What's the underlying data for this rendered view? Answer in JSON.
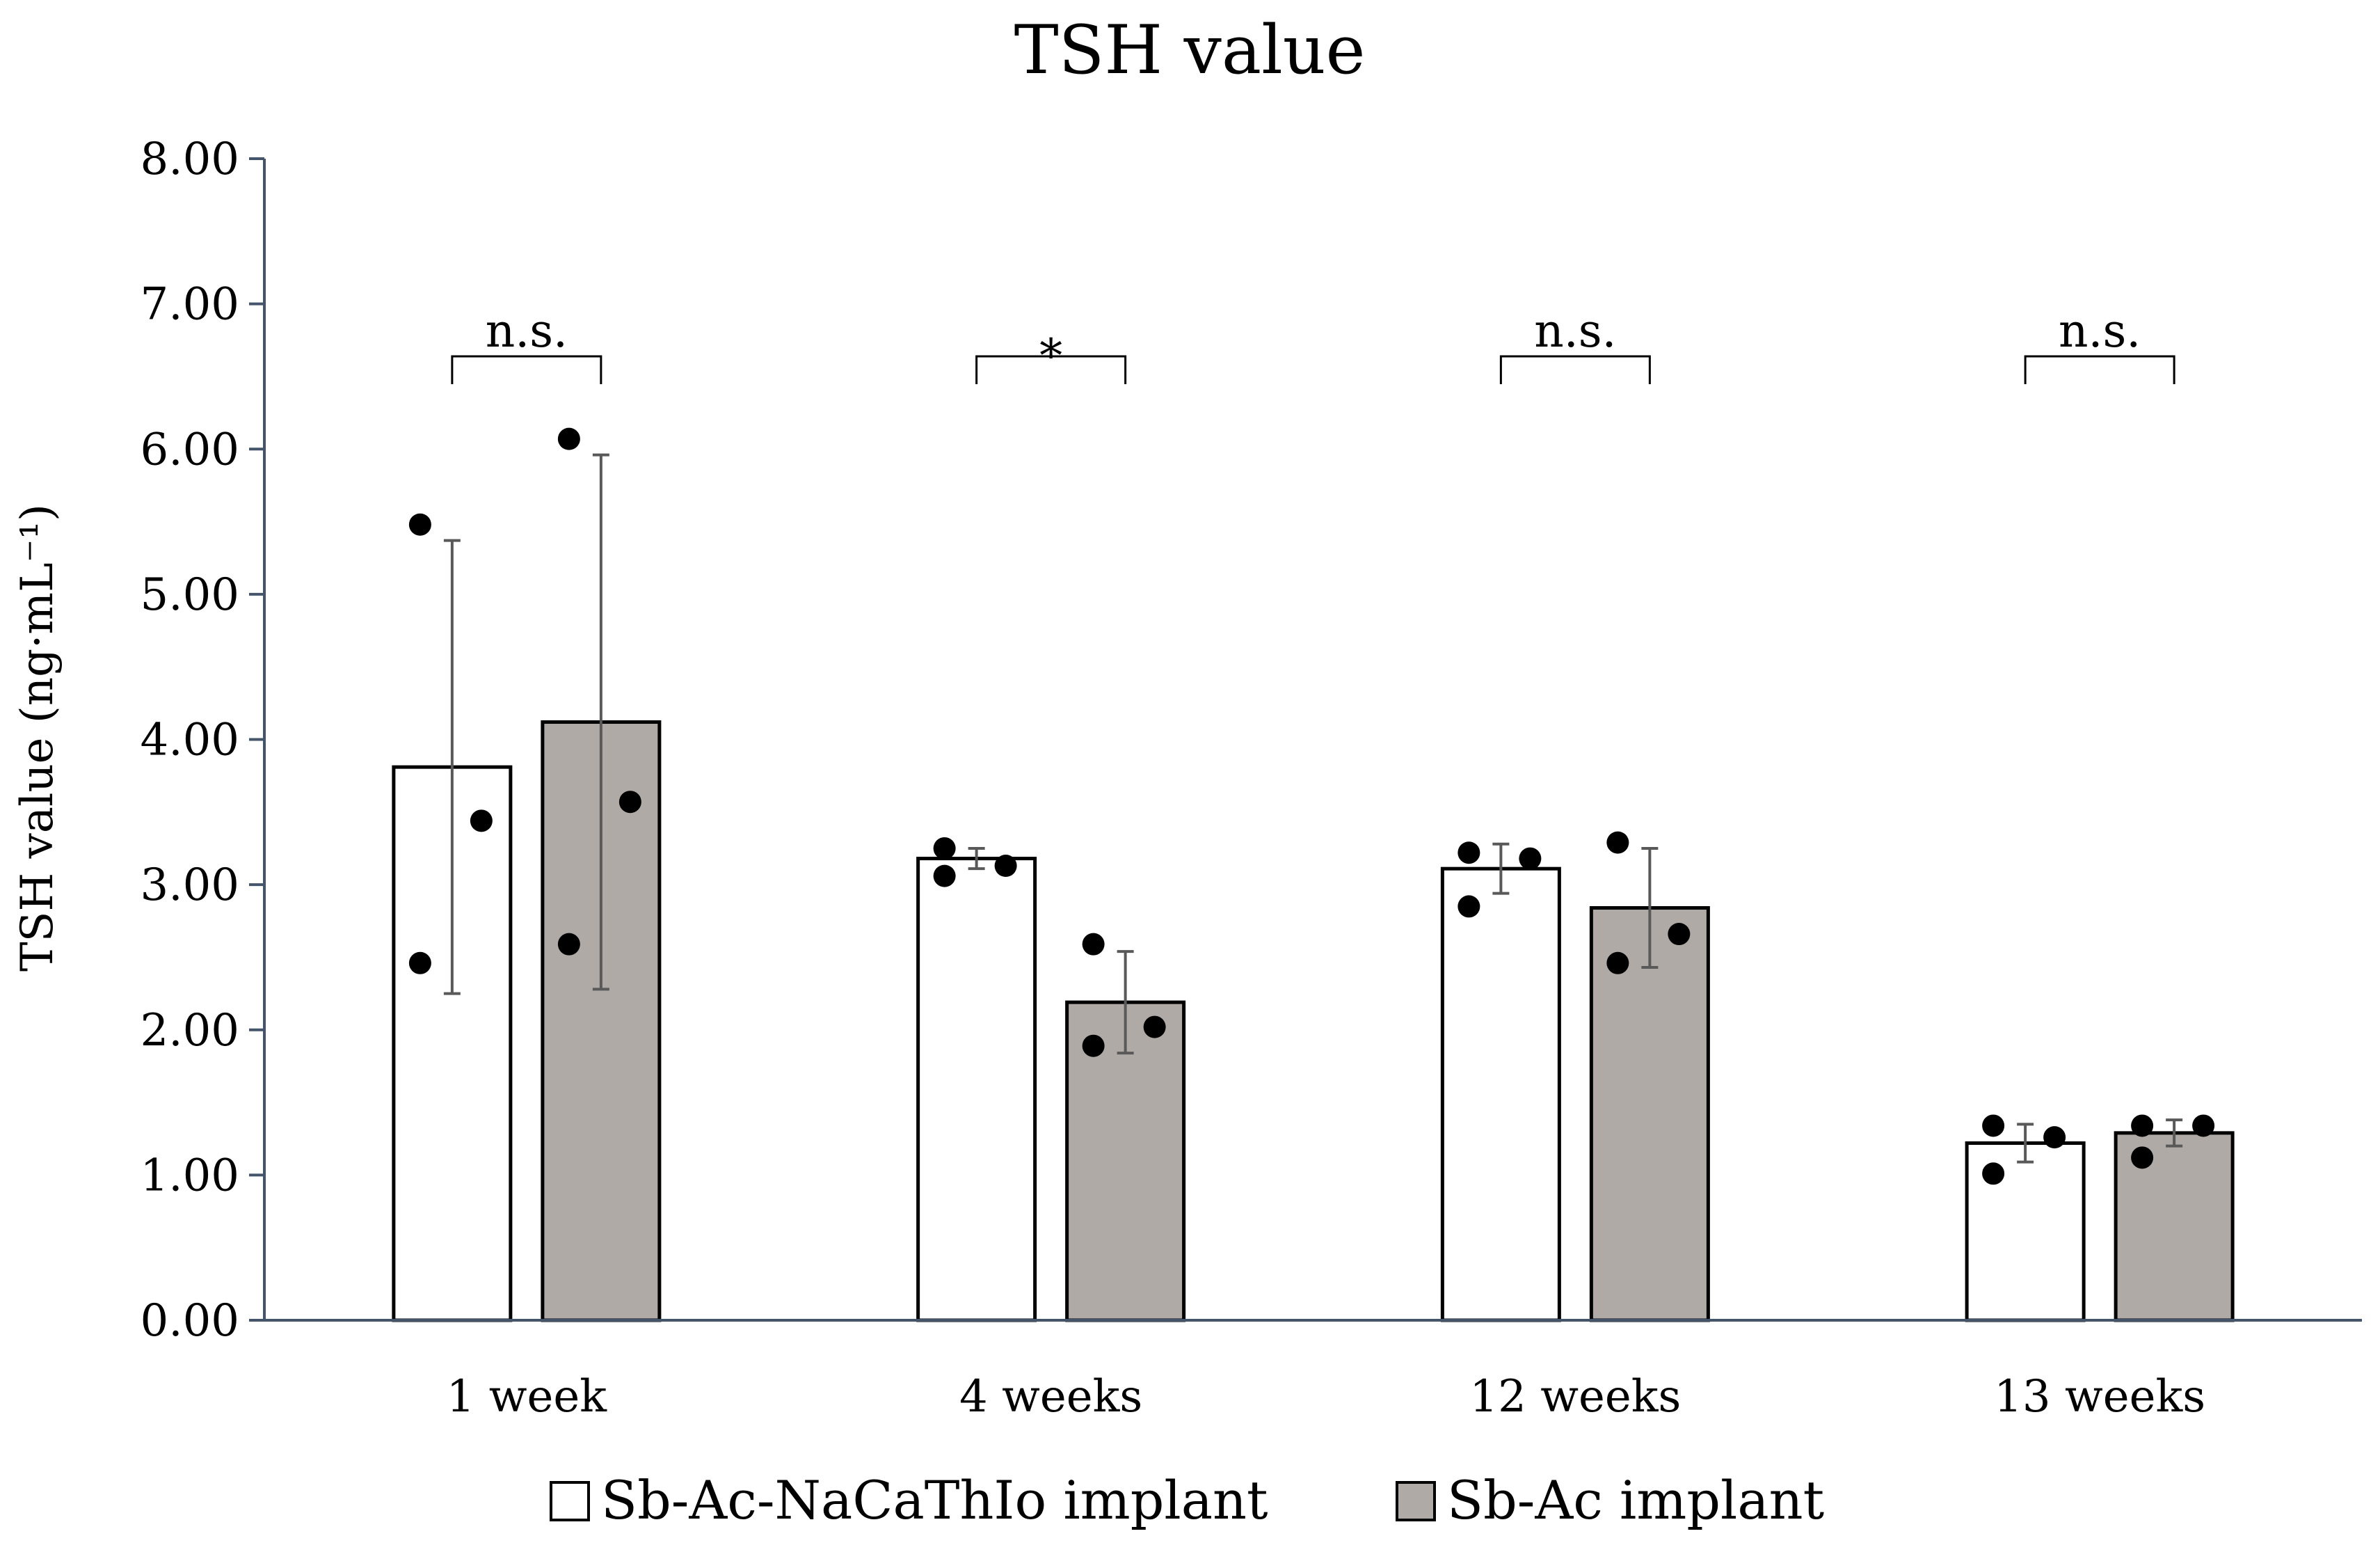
{
  "chart_data": {
    "type": "bar",
    "title": "TSH value",
    "xlabel": "",
    "ylabel": "TSH value (ng·mL⁻¹)",
    "ylim": [
      0,
      8
    ],
    "yticks": [
      "0.00",
      "1.00",
      "2.00",
      "3.00",
      "4.00",
      "5.00",
      "6.00",
      "7.00",
      "8.00"
    ],
    "grid": false,
    "legend_position": "bottom",
    "categories": [
      "1 week",
      "4 weeks",
      "12 weeks",
      "13 weeks"
    ],
    "series": [
      {
        "name": "Sb-Ac-NaCaThIo implant",
        "color": "#ffffff",
        "values": [
          3.81,
          3.18,
          3.11,
          1.22
        ],
        "error": [
          1.56,
          0.07,
          0.17,
          0.13
        ],
        "points": [
          [
            5.48,
            2.46,
            3.44
          ],
          [
            3.25,
            3.06,
            3.13
          ],
          [
            3.22,
            2.85,
            3.18
          ],
          [
            1.34,
            1.01,
            1.26
          ]
        ]
      },
      {
        "name": "Sb-Ac implant",
        "color": "#b0aaa7",
        "values": [
          4.12,
          2.19,
          2.84,
          1.29
        ],
        "error": [
          1.84,
          0.35,
          0.41,
          0.09
        ],
        "points": [
          [
            6.07,
            2.59,
            3.57
          ],
          [
            2.59,
            1.89,
            2.02
          ],
          [
            3.29,
            2.46,
            2.66
          ],
          [
            1.34,
            1.12,
            1.34
          ]
        ]
      }
    ],
    "annotations": [
      "n.s.",
      "*",
      "n.s.",
      "n.s."
    ]
  }
}
